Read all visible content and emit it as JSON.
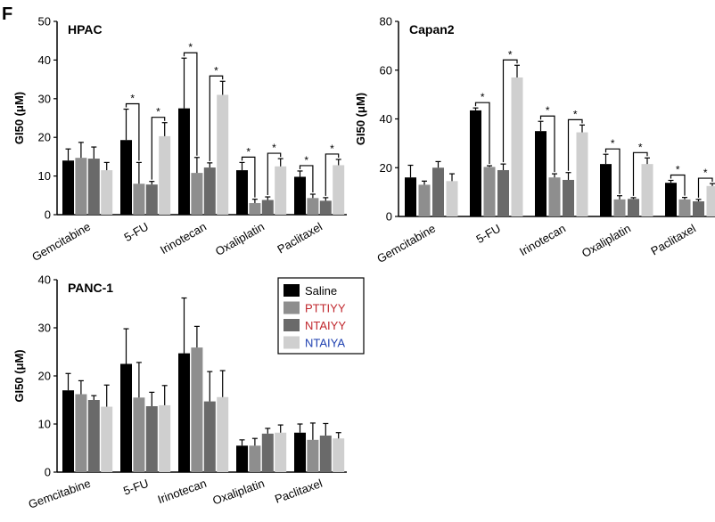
{
  "figure": {
    "panel_letter": "F",
    "legend": [
      {
        "name": "Saline",
        "color": "#000000",
        "text_color": "#000000"
      },
      {
        "name": "PTTIYY",
        "color": "#8e8e8e",
        "text_color": "#c0262c"
      },
      {
        "name": "NTAIYY",
        "color": "#6a6a6a",
        "text_color": "#c0262c"
      },
      {
        "name": "NTAIYA",
        "color": "#cfcfcf",
        "text_color": "#1d3fb0"
      }
    ],
    "significance_marker": "*"
  },
  "chart_data": [
    {
      "type": "bar",
      "title": "HPAC",
      "ylabel": "GI50 (μM)",
      "ylim": [
        0,
        50
      ],
      "yticks": [
        "0",
        "10",
        "20",
        "30",
        "40",
        "50"
      ],
      "categories": [
        "Gemcitabine",
        "5-FU",
        "Irinotecan",
        "Oxaliplatin",
        "Paclitaxel"
      ],
      "series": [
        {
          "name": "Saline",
          "values": [
            14,
            19.3,
            27.5,
            11.5,
            9.8
          ],
          "errors": [
            3,
            8,
            13,
            2,
            1.5
          ]
        },
        {
          "name": "PTTIYY",
          "values": [
            14.7,
            8,
            10.8,
            3,
            4.3
          ],
          "errors": [
            4,
            5.5,
            4,
            1,
            1
          ]
        },
        {
          "name": "NTAIYY",
          "values": [
            14.5,
            7.8,
            12.2,
            3.8,
            3.6
          ],
          "errors": [
            3,
            0.8,
            1.2,
            0.8,
            0.8
          ]
        },
        {
          "name": "NTAIYA",
          "values": [
            11.5,
            20.3,
            31,
            12.5,
            12.8
          ],
          "errors": [
            2,
            3.5,
            3.5,
            2,
            1.5
          ]
        }
      ],
      "significance": [
        {
          "category": "5-FU",
          "pair": [
            "Saline",
            "PTTIYY"
          ]
        },
        {
          "category": "5-FU",
          "pair": [
            "NTAIYY",
            "NTAIYA"
          ]
        },
        {
          "category": "Irinotecan",
          "pair": [
            "Saline",
            "PTTIYY"
          ]
        },
        {
          "category": "Irinotecan",
          "pair": [
            "NTAIYY",
            "NTAIYA"
          ]
        },
        {
          "category": "Oxaliplatin",
          "pair": [
            "Saline",
            "PTTIYY"
          ]
        },
        {
          "category": "Oxaliplatin",
          "pair": [
            "NTAIYY",
            "NTAIYA"
          ]
        },
        {
          "category": "Paclitaxel",
          "pair": [
            "Saline",
            "PTTIYY"
          ]
        },
        {
          "category": "Paclitaxel",
          "pair": [
            "NTAIYY",
            "NTAIYA"
          ]
        }
      ]
    },
    {
      "type": "bar",
      "title": "Capan2",
      "ylabel": "GI50 (μM)",
      "ylim": [
        0,
        80
      ],
      "yticks": [
        "0",
        "20",
        "40",
        "60",
        "80"
      ],
      "categories": [
        "Gemcitabine",
        "5-FU",
        "Irinotecan",
        "Oxaliplatin",
        "Paclitaxel"
      ],
      "series": [
        {
          "name": "Saline",
          "values": [
            16,
            43.5,
            35,
            21.5,
            13.8
          ],
          "errors": [
            5,
            1,
            4,
            4,
            1
          ]
        },
        {
          "name": "PTTIYY",
          "values": [
            13,
            20.3,
            16,
            7,
            7
          ],
          "errors": [
            1.5,
            0.5,
            1.5,
            1.5,
            0.8
          ]
        },
        {
          "name": "NTAIYY",
          "values": [
            20,
            19,
            15,
            7.2,
            6.2
          ],
          "errors": [
            2.5,
            2.5,
            3,
            0.5,
            0.8
          ]
        },
        {
          "name": "NTAIYA",
          "values": [
            14.5,
            57,
            34.5,
            21.5,
            12.5
          ],
          "errors": [
            3,
            5,
            3,
            2.5,
            1
          ]
        }
      ],
      "significance": [
        {
          "category": "5-FU",
          "pair": [
            "Saline",
            "PTTIYY"
          ]
        },
        {
          "category": "5-FU",
          "pair": [
            "NTAIYY",
            "NTAIYA"
          ]
        },
        {
          "category": "Irinotecan",
          "pair": [
            "Saline",
            "PTTIYY"
          ]
        },
        {
          "category": "Irinotecan",
          "pair": [
            "NTAIYY",
            "NTAIYA"
          ]
        },
        {
          "category": "Oxaliplatin",
          "pair": [
            "Saline",
            "PTTIYY"
          ]
        },
        {
          "category": "Oxaliplatin",
          "pair": [
            "NTAIYY",
            "NTAIYA"
          ]
        },
        {
          "category": "Paclitaxel",
          "pair": [
            "Saline",
            "PTTIYY"
          ]
        },
        {
          "category": "Paclitaxel",
          "pair": [
            "NTAIYY",
            "NTAIYA"
          ]
        }
      ]
    },
    {
      "type": "bar",
      "title": "PANC-1",
      "ylabel": "GI50 (μM)",
      "ylim": [
        0,
        40
      ],
      "yticks": [
        "0",
        "10",
        "20",
        "30",
        "40"
      ],
      "categories": [
        "Gemcitabine",
        "5-FU",
        "Irinotecan",
        "Oxaliplatin",
        "Paclitaxel"
      ],
      "series": [
        {
          "name": "Saline",
          "values": [
            17,
            22.5,
            24.7,
            5.5,
            8.2
          ],
          "errors": [
            3.5,
            7.3,
            11.5,
            1.2,
            1.8
          ]
        },
        {
          "name": "PTTIYY",
          "values": [
            16.2,
            15.5,
            25.9,
            5.5,
            6.7
          ],
          "errors": [
            2.8,
            7.3,
            4.4,
            1.5,
            3.5
          ]
        },
        {
          "name": "NTAIYY",
          "values": [
            15,
            13.7,
            14.7,
            8,
            7.6
          ],
          "errors": [
            0.9,
            2.9,
            6.2,
            1.1,
            2.5
          ]
        },
        {
          "name": "NTAIYA",
          "values": [
            13.6,
            13.9,
            15.6,
            8.2,
            7
          ],
          "errors": [
            4.5,
            4.1,
            5.5,
            1.6,
            1.2
          ]
        }
      ],
      "significance": []
    }
  ]
}
